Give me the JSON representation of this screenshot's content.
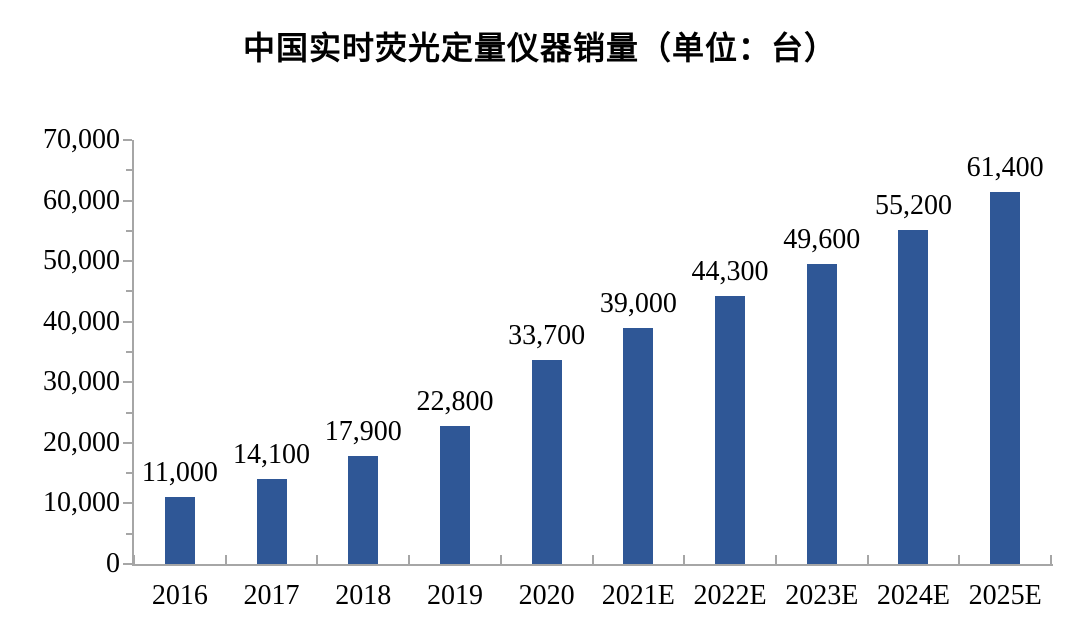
{
  "chart_data": {
    "type": "bar",
    "title": "中国实时荧光定量仪器销量（单位：台）",
    "categories": [
      "2016",
      "2017",
      "2018",
      "2019",
      "2020",
      "2021E",
      "2022E",
      "2023E",
      "2024E",
      "2025E"
    ],
    "values": [
      11000,
      14100,
      17900,
      22800,
      33700,
      39000,
      44300,
      49600,
      55200,
      61400
    ],
    "data_labels": [
      "11,000",
      "14,100",
      "17,900",
      "22,800",
      "33,700",
      "39,000",
      "44,300",
      "49,600",
      "55,200",
      "61,400"
    ],
    "xlabel": "",
    "ylabel": "",
    "ylim": [
      0,
      70000
    ],
    "ytick_major_interval": 10000,
    "ytick_minor_interval": 5000,
    "ytick_labels": [
      "0",
      "10,000",
      "20,000",
      "30,000",
      "40,000",
      "50,000",
      "60,000",
      "70,000"
    ],
    "grid": "off",
    "legend": "none",
    "bar_color": "#2F5796",
    "axis_color": "#A6A6A6",
    "text_color": "#000000"
  }
}
